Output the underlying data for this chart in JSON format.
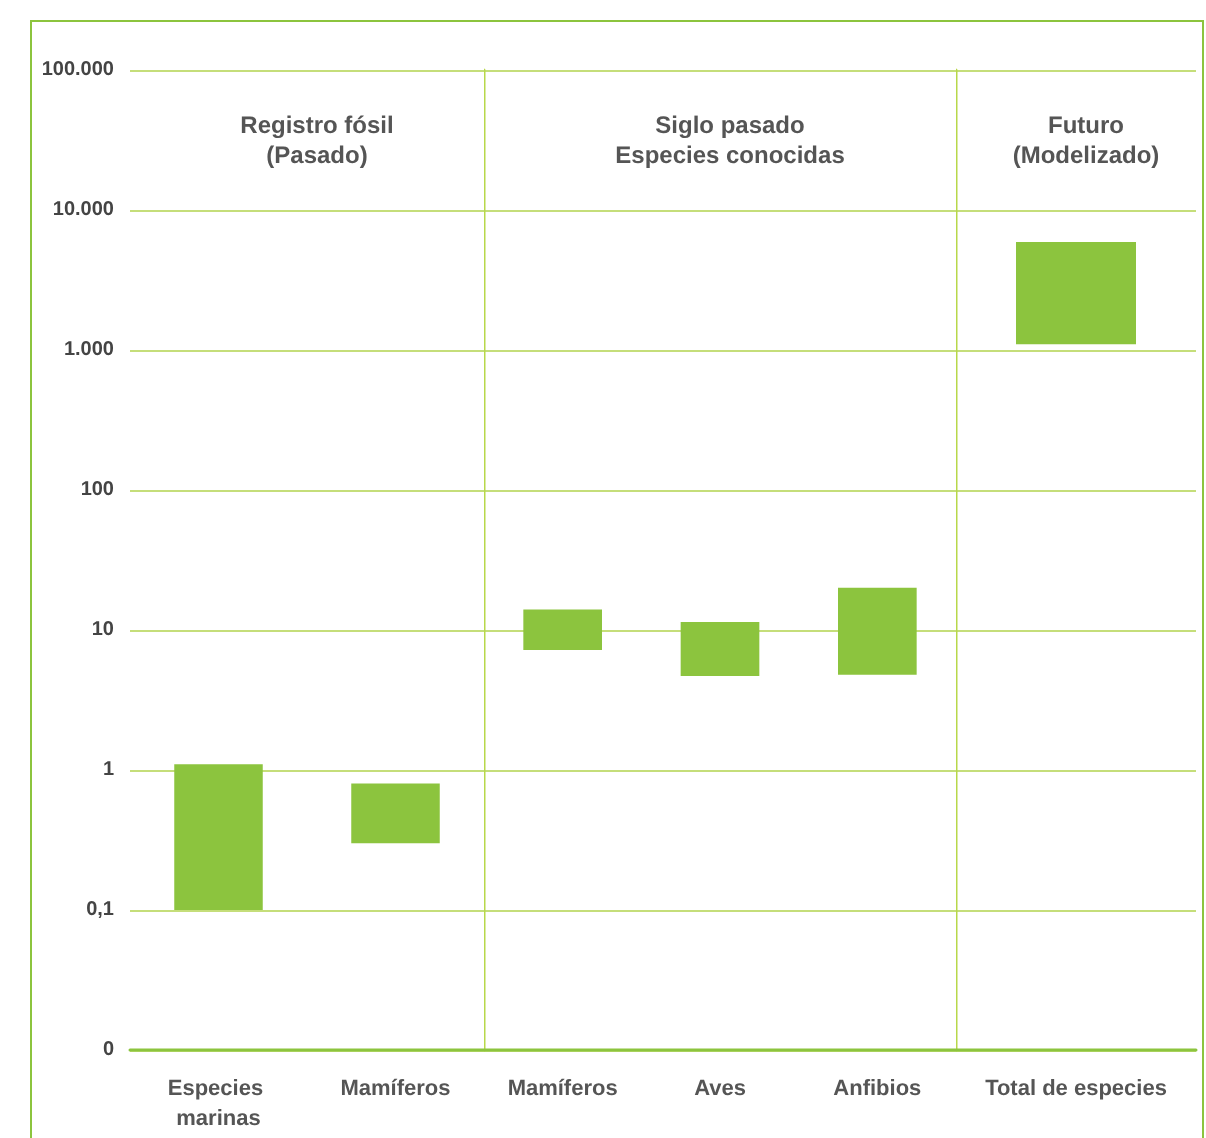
{
  "chart_data": [
    {
      "type": "bar",
      "title": "Registro fósil\n(Pasado)",
      "categories": [
        "Especies marinas",
        "Mamíferos"
      ],
      "base": [
        0.1,
        0.3
      ],
      "values": [
        1.0,
        0.5
      ],
      "color": "#8cc43e",
      "log": true,
      "ylim": [
        0.01,
        100000
      ],
      "yticks": [
        {
          "value": 0.01,
          "label": "0"
        },
        {
          "value": 0.1,
          "label": "0,1"
        },
        1,
        10,
        100,
        {
          "value": 1000,
          "label": "1.000"
        },
        {
          "value": 10000,
          "label": "10.000"
        },
        {
          "value": 100000,
          "label": "100.000"
        }
      ],
      "grid": "y"
    },
    {
      "type": "bar",
      "title": "Siglo pasado\nEspecies conocidas",
      "categories": [
        "Mamíferos",
        "Aves",
        "Anfibios"
      ],
      "base": [
        7.2,
        4.7,
        4.8
      ],
      "values": [
        6.8,
        6.7,
        15.2
      ],
      "color": "#8cc43e",
      "log": true,
      "ylim": [
        0.01,
        100000
      ],
      "yticks": [
        0.01,
        0.1,
        1,
        10,
        100,
        1000,
        10000,
        100000
      ],
      "grid": "y",
      "tick_labels": "x"
    },
    {
      "type": "bar",
      "title": "Futuro\n(Modelizado)",
      "categories": [
        "Total de especies"
      ],
      "base": [
        1100
      ],
      "values": [
        4800
      ],
      "color": "#8cc43e",
      "log": true,
      "ylim": [
        0.01,
        100000
      ],
      "yticks": [
        0.01,
        0.1,
        1,
        10,
        100,
        1000,
        10000,
        100000
      ],
      "grid": "y",
      "tick_labels": "x"
    }
  ]
}
